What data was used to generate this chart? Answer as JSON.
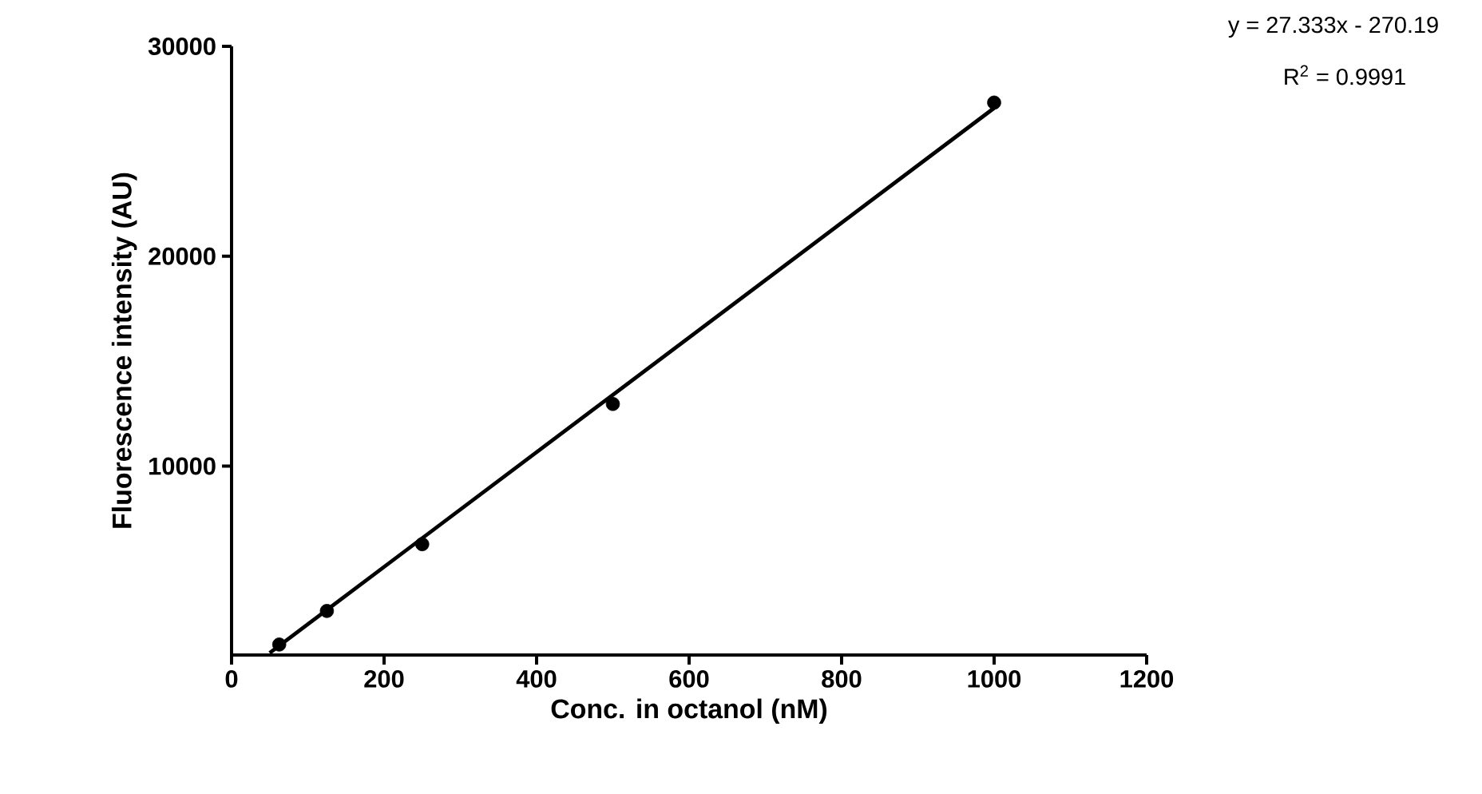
{
  "chart_data": {
    "type": "scatter",
    "xlabel": "Conc. in octanol (nM)",
    "ylabel": "Fluorescence intensity (AU)",
    "xlim": [
      0,
      1200
    ],
    "xticks": [
      0,
      200,
      400,
      600,
      800,
      1000,
      1200
    ],
    "ylim": [
      1000,
      30000
    ],
    "yticks": [
      10000,
      20000,
      30000
    ],
    "grid": false,
    "series": [
      {
        "color": "#000000",
        "marker": "circle",
        "x": [
          62.5,
          125,
          250,
          500,
          1000
        ],
        "values": [
          1500,
          3100,
          6280,
          12960,
          27320
        ]
      },
      {
        "type": "line",
        "color": "#000000",
        "marker": "none",
        "line_style": "solid",
        "x": [
          50,
          1000
        ],
        "values": [
          1100,
          27060
        ]
      }
    ],
    "annotations": [
      "y = 27.333x - 270.19",
      "R$^{2}$ = 0.9991"
    ]
  }
}
